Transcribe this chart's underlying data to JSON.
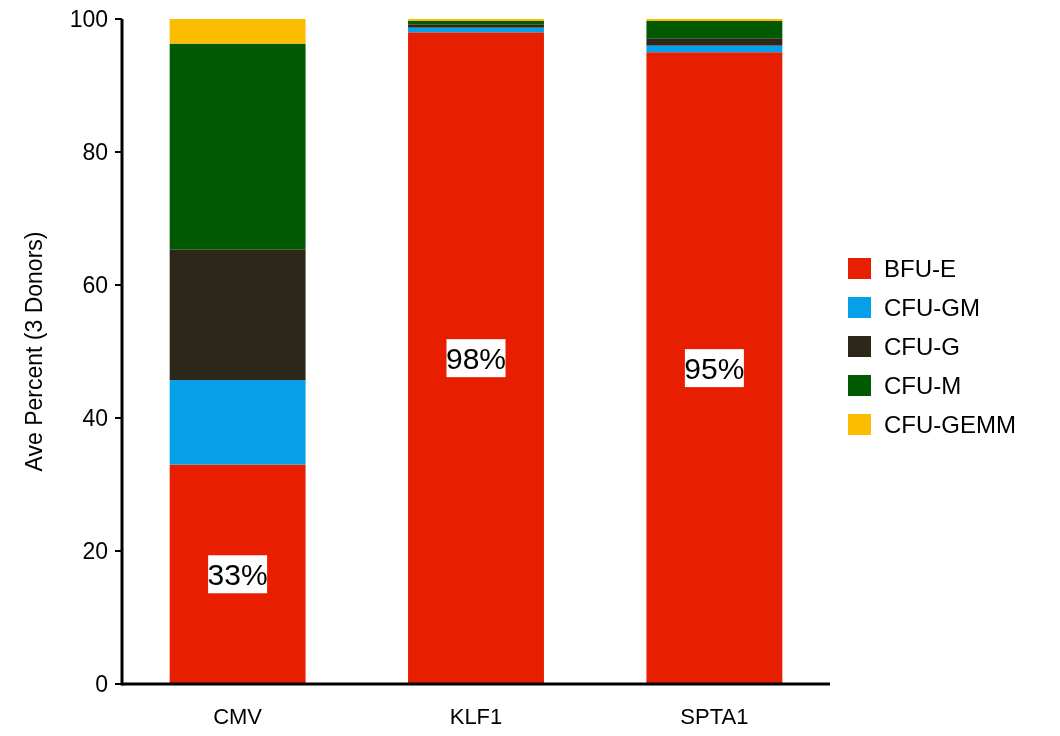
{
  "chart_data": {
    "type": "bar",
    "stacked": true,
    "ylabel": "Ave Percent (3 Donors)",
    "categories": [
      "CMV",
      "KLF1",
      "SPTA1"
    ],
    "series": [
      {
        "name": "BFU-E",
        "color": "#e81e00",
        "values": [
          33,
          98,
          95
        ],
        "value_labels": [
          "33%",
          "98%",
          "95%"
        ]
      },
      {
        "name": "CFU-GM",
        "color": "#05a0e8",
        "values": [
          12.7,
          0.7,
          1.0
        ]
      },
      {
        "name": "CFU-G",
        "color": "#2c2718",
        "values": [
          19.6,
          0.5,
          1.1
        ]
      },
      {
        "name": "CFU-M",
        "color": "#015a01",
        "values": [
          31,
          0.5,
          2.6
        ]
      },
      {
        "name": "CFU-GEMM",
        "color": "#fcbc00",
        "values": [
          3.7,
          0.3,
          0.3
        ]
      }
    ],
    "ylim": [
      0,
      100
    ],
    "yticks": [
      0,
      20,
      40,
      60,
      80,
      100
    ],
    "legend": "right",
    "grid": false
  }
}
